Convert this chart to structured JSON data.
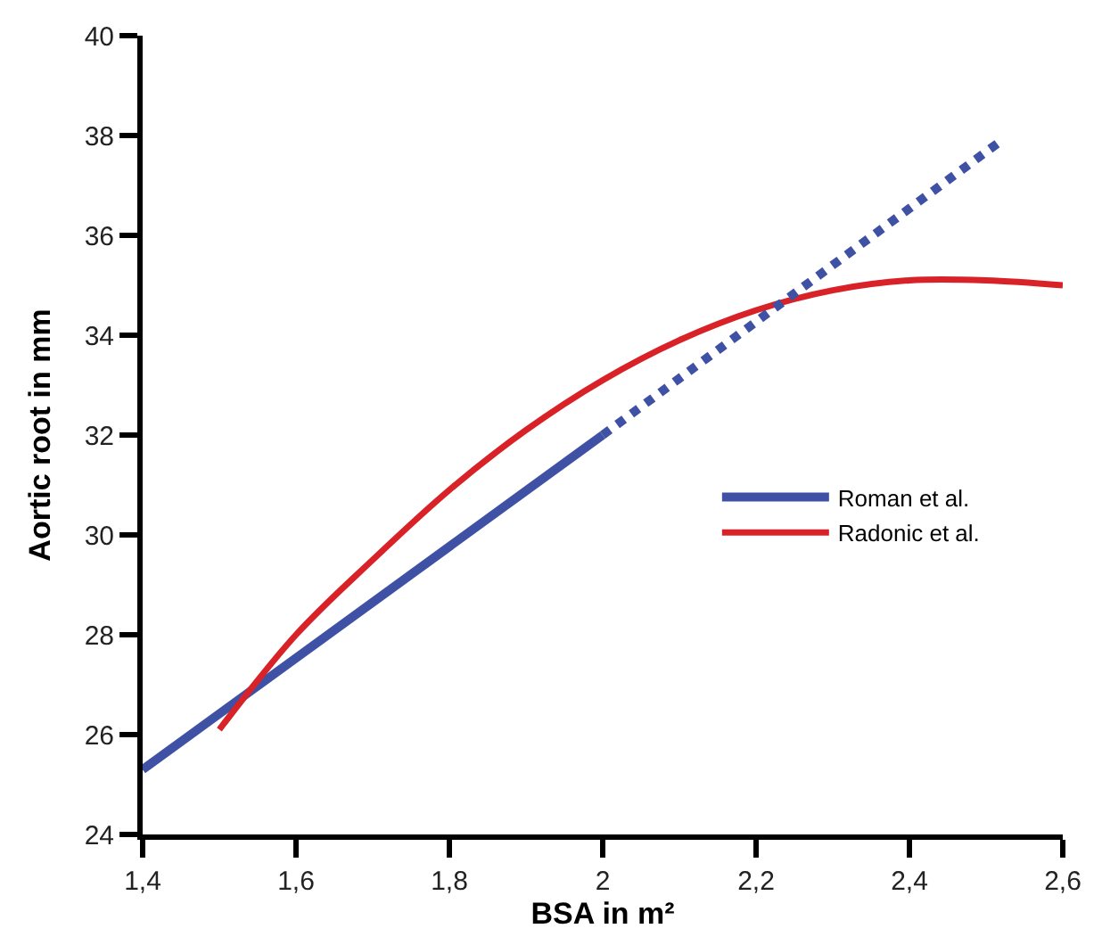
{
  "chart_data": {
    "type": "line",
    "xlabel": "BSA in m²",
    "ylabel": "Aortic root in mm",
    "xlim": [
      1.4,
      2.6
    ],
    "xticks": [
      {
        "value": 1.4,
        "label": "1,4"
      },
      {
        "value": 1.6,
        "label": "1,6"
      },
      {
        "value": 1.8,
        "label": "1,8"
      },
      {
        "value": 2.0,
        "label": "2"
      },
      {
        "value": 2.2,
        "label": "2,2"
      },
      {
        "value": 2.4,
        "label": "2,4"
      },
      {
        "value": 2.6,
        "label": "2,6"
      }
    ],
    "ylim": [
      24,
      40
    ],
    "yticks": [
      24,
      26,
      28,
      30,
      32,
      34,
      36,
      38,
      40
    ],
    "legend": "right",
    "marker": "none",
    "series": [
      {
        "name": "Roman et al.",
        "color": "#3f51a5",
        "x": [
          1.4,
          2.0
        ],
        "values": [
          25.3,
          32.0
        ],
        "line_style": "solid"
      },
      {
        "name": "Radonic et al.",
        "color": "#d92228",
        "x": [
          1.5,
          1.6,
          1.7,
          1.8,
          1.9,
          2.0,
          2.1,
          2.2,
          2.3,
          2.4,
          2.5,
          2.6
        ],
        "values": [
          26.1,
          28.0,
          29.5,
          30.9,
          32.1,
          33.1,
          33.9,
          34.5,
          34.9,
          35.1,
          35.1,
          35.0
        ],
        "line_style": "solid"
      },
      {
        "color": "#3f51a5",
        "x": [
          2.0,
          2.52
        ],
        "values": [
          32.0,
          37.9
        ],
        "line_style": "dotted"
      }
    ]
  }
}
